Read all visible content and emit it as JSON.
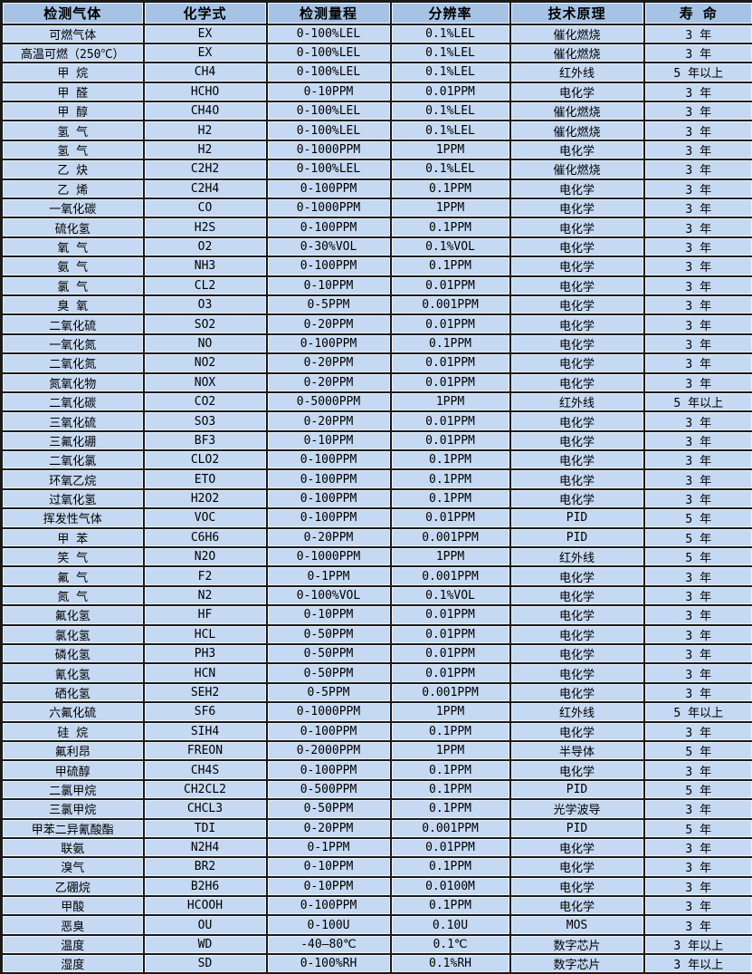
{
  "colors": {
    "header_bg": "#a6c3e6",
    "row_bg": "#c6d9f2",
    "border": "#1a1a1a",
    "text": "#000000"
  },
  "table": {
    "name": "gas-detector-specifications",
    "columns": [
      {
        "key": "gas",
        "label": "检测气体"
      },
      {
        "key": "formula",
        "label": "化学式"
      },
      {
        "key": "range",
        "label": "检测量程"
      },
      {
        "key": "resolution",
        "label": "分辨率"
      },
      {
        "key": "principle",
        "label": "技术原理"
      },
      {
        "key": "lifespan",
        "label": "寿 命"
      }
    ],
    "rows": [
      [
        "可燃气体",
        "EX",
        "0-100%LEL",
        "0.1%LEL",
        "催化燃烧",
        "3 年"
      ],
      [
        "高温可燃（250℃）",
        "EX",
        "0-100%LEL",
        "0.1%LEL",
        "催化燃烧",
        "3 年"
      ],
      [
        "甲 烷",
        "CH4",
        "0-100%LEL",
        "0.1%LEL",
        "红外线",
        "5 年以上"
      ],
      [
        "甲 醛",
        "HCHO",
        "0-10PPM",
        "0.01PPM",
        "电化学",
        "3 年"
      ],
      [
        "甲 醇",
        "CH4O",
        "0-100%LEL",
        "0.1%LEL",
        "催化燃烧",
        "3 年"
      ],
      [
        "氢 气",
        "H2",
        "0-100%LEL",
        "0.1%LEL",
        "催化燃烧",
        "3 年"
      ],
      [
        "氢 气",
        "H2",
        "0-1000PPM",
        "1PPM",
        "电化学",
        "3 年"
      ],
      [
        "乙 炔",
        "C2H2",
        "0-100%LEL",
        "0.1%LEL",
        "催化燃烧",
        "3 年"
      ],
      [
        "乙 烯",
        "C2H4",
        "0-100PPM",
        "0.1PPM",
        "电化学",
        "3 年"
      ],
      [
        "一氧化碳",
        "CO",
        "0-1000PPM",
        "1PPM",
        "电化学",
        "3 年"
      ],
      [
        "硫化氢",
        "H2S",
        "0-100PPM",
        "0.1PPM",
        "电化学",
        "3 年"
      ],
      [
        "氧 气",
        "O2",
        "0-30%VOL",
        "0.1%VOL",
        "电化学",
        "3 年"
      ],
      [
        "氨 气",
        "NH3",
        "0-100PPM",
        "0.1PPM",
        "电化学",
        "3 年"
      ],
      [
        "氯 气",
        "CL2",
        "0-10PPM",
        "0.01PPM",
        "电化学",
        "3 年"
      ],
      [
        "臭 氧",
        "O3",
        "0-5PPM",
        "0.001PPM",
        "电化学",
        "3 年"
      ],
      [
        "二氧化硫",
        "SO2",
        "0-20PPM",
        "0.01PPM",
        "电化学",
        "3 年"
      ],
      [
        "一氧化氮",
        "NO",
        "0-100PPM",
        "0.1PPM",
        "电化学",
        "3 年"
      ],
      [
        "二氧化氮",
        "NO2",
        "0-20PPM",
        "0.01PPM",
        "电化学",
        "3 年"
      ],
      [
        "氮氧化物",
        "NOX",
        "0-20PPM",
        "0.01PPM",
        "电化学",
        "3 年"
      ],
      [
        "二氧化碳",
        "CO2",
        "0-5000PPM",
        "1PPM",
        "红外线",
        "5 年以上"
      ],
      [
        "三氧化硫",
        "SO3",
        "0-20PPM",
        "0.01PPM",
        "电化学",
        "3 年"
      ],
      [
        "三氟化硼",
        "BF3",
        "0-10PPM",
        "0.01PPM",
        "电化学",
        "3 年"
      ],
      [
        "二氧化氯",
        "CLO2",
        "0-100PPM",
        "0.1PPM",
        "电化学",
        "3 年"
      ],
      [
        "环氧乙烷",
        "ETO",
        "0-100PPM",
        "0.1PPM",
        "电化学",
        "3 年"
      ],
      [
        "过氧化氢",
        "H2O2",
        "0-100PPM",
        "0.1PPM",
        "电化学",
        "3 年"
      ],
      [
        "挥发性气体",
        "VOC",
        "0-100PPM",
        "0.01PPM",
        "PID",
        "5 年"
      ],
      [
        "甲 苯",
        "C6H6",
        "0-20PPM",
        "0.001PPM",
        "PID",
        "5 年"
      ],
      [
        "笑 气",
        "N2O",
        "0-1000PPM",
        "1PPM",
        "红外线",
        "5 年"
      ],
      [
        "氟 气",
        "F2",
        "0-1PPM",
        "0.001PPM",
        "电化学",
        "3 年"
      ],
      [
        "氮 气",
        "N2",
        "0-100%VOL",
        "0.1%VOL",
        "电化学",
        "3 年"
      ],
      [
        "氟化氢",
        "HF",
        "0-10PPM",
        "0.01PPM",
        "电化学",
        "3 年"
      ],
      [
        "氯化氢",
        "HCL",
        "0-50PPM",
        "0.01PPM",
        "电化学",
        "3 年"
      ],
      [
        "磷化氢",
        "PH3",
        "0-50PPM",
        "0.01PPM",
        "电化学",
        "3 年"
      ],
      [
        "氰化氢",
        "HCN",
        "0-50PPM",
        "0.01PPM",
        "电化学",
        "3 年"
      ],
      [
        "硒化氢",
        "SEH2",
        "0-5PPM",
        "0.001PPM",
        "电化学",
        "3 年"
      ],
      [
        "六氟化硫",
        "SF6",
        "0-1000PPM",
        "1PPM",
        "红外线",
        "5 年以上"
      ],
      [
        "硅 烷",
        "SIH4",
        "0-100PPM",
        "0.1PPM",
        "电化学",
        "3 年"
      ],
      [
        "氟利昂",
        "FREON",
        "0-2000PPM",
        "1PPM",
        "半导体",
        "5 年"
      ],
      [
        "甲硫醇",
        "CH4S",
        "0-100PPM",
        "0.1PPM",
        "电化学",
        "3 年"
      ],
      [
        "二氯甲烷",
        "CH2CL2",
        "0-500PPM",
        "0.1PPM",
        "PID",
        "5 年"
      ],
      [
        "三氯甲烷",
        "CHCL3",
        "0-50PPM",
        "0.1PPM",
        "光学波导",
        "3 年"
      ],
      [
        "甲苯二异氰酸酯",
        "TDI",
        "0-20PPM",
        "0.001PPM",
        "PID",
        "5 年"
      ],
      [
        "联氨",
        "N2H4",
        "0-1PPM",
        "0.01PPM",
        "电化学",
        "3 年"
      ],
      [
        "溴气",
        "BR2",
        "0-10PPM",
        "0.1PPM",
        "电化学",
        "3 年"
      ],
      [
        "乙硼烷",
        "B2H6",
        "0-10PPM",
        "0.0100M",
        "电化学",
        "3 年"
      ],
      [
        "甲酸",
        "HCOOH",
        "0-100PPM",
        "0.1PPM",
        "电化学",
        "3 年"
      ],
      [
        "恶臭",
        "OU",
        "0-100U",
        "0.10U",
        "MOS",
        "3 年"
      ],
      [
        "温度",
        "WD",
        "-40—80℃",
        "0.1℃",
        "数字芯片",
        "3 年以上"
      ],
      [
        "湿度",
        "SD",
        "0-100%RH",
        "0.1%RH",
        "数字芯片",
        "3 年以上"
      ]
    ]
  }
}
